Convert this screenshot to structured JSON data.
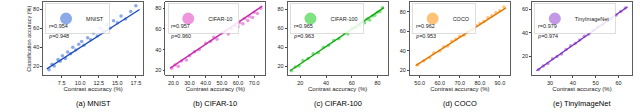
{
  "chart_data": [
    {
      "type": "scatter",
      "caption": "(a) MNIST",
      "xlabel": "Contrast accuracy (%)",
      "ylabel": "Classification accuracy (%)",
      "xlim": [
        5,
        18.5
      ],
      "ylim": [
        10,
        88
      ],
      "xticks": [
        {
          "value": 7.5,
          "label": "7.5"
        },
        {
          "value": 10,
          "label": "10.0"
        },
        {
          "value": 12.5,
          "label": "12.5"
        },
        {
          "value": 15,
          "label": "15.0"
        },
        {
          "value": 17.5,
          "label": "17.5"
        }
      ],
      "yticks": [
        20,
        40,
        60,
        80
      ],
      "grid": false,
      "legend": "upper left",
      "annotations": [
        "r=0.954",
        "ρ=0.948"
      ],
      "series": [
        {
          "name": "MNIST",
          "type": "scatter",
          "color": "#3f6fd8",
          "marker": "circle",
          "x": [
            5.8,
            6.2,
            6.5,
            7.0,
            7.3,
            7.6,
            8.0,
            8.3,
            8.7,
            9.0,
            9.4,
            9.8,
            10.2,
            10.5,
            11.0,
            11.4,
            11.8,
            12.3,
            12.7,
            13.1,
            13.6,
            14.0,
            14.5,
            15.0,
            15.5,
            16.1,
            16.8,
            17.5
          ],
          "values": [
            16,
            22,
            20,
            27,
            25,
            31,
            28,
            35,
            33,
            40,
            37,
            43,
            46,
            42,
            50,
            48,
            55,
            52,
            60,
            57,
            64,
            60,
            68,
            66,
            73,
            70,
            78,
            84
          ]
        },
        {
          "type": "line",
          "color": "#1f4fbf",
          "line_style": "solid",
          "x": [
            5.5,
            18
          ],
          "values": [
            17,
            80
          ]
        }
      ]
    },
    {
      "type": "scatter",
      "caption": "(b) CIFAR-10",
      "xlabel": "Contrast accuracy (%)",
      "xlim": [
        15,
        77
      ],
      "ylim": [
        15,
        86
      ],
      "xticks": [
        {
          "value": 20,
          "label": "20.0"
        },
        {
          "value": 30,
          "label": "30.0"
        },
        {
          "value": 40,
          "label": "40.0"
        },
        {
          "value": 50,
          "label": "50.0"
        },
        {
          "value": 60,
          "label": "60.0"
        },
        {
          "value": 70,
          "label": "70.0"
        }
      ],
      "yticks": [
        20,
        40,
        60,
        80
      ],
      "grid": false,
      "legend": "upper left",
      "annotations": [
        "r=0.957",
        "ρ=0.960"
      ],
      "series": [
        {
          "name": "CIFAR-10",
          "type": "scatter",
          "color": "#e24fc8",
          "marker": "circle",
          "x": [
            19,
            21,
            23,
            25,
            28,
            30,
            33,
            36,
            40,
            43,
            45,
            47,
            50,
            52,
            54,
            56,
            58,
            60,
            61,
            63,
            64,
            66,
            67,
            69,
            70,
            72,
            74
          ],
          "values": [
            22,
            25,
            24,
            29,
            30,
            34,
            38,
            40,
            46,
            48,
            52,
            50,
            56,
            58,
            55,
            60,
            63,
            62,
            66,
            65,
            70,
            68,
            72,
            71,
            76,
            75,
            80
          ]
        },
        {
          "type": "line",
          "color": "#c52aab",
          "line_style": "solid",
          "x": [
            18,
            75
          ],
          "values": [
            22,
            82
          ]
        }
      ]
    },
    {
      "type": "scatter",
      "caption": "(c) CIFAR-100",
      "xlabel": "Contrast accuracy (%)",
      "xlim": [
        10,
        88
      ],
      "ylim": [
        10,
        88
      ],
      "xticks": [
        20,
        40,
        60,
        80
      ],
      "yticks": [
        20,
        40,
        60,
        80
      ],
      "grid": false,
      "legend": "upper left",
      "annotations": [
        "r=0.965",
        "ρ=0.963"
      ],
      "series": [
        {
          "name": "CIFAR-100",
          "type": "scatter",
          "color": "#2ccf2c",
          "marker": "circle",
          "x": [
            13,
            16,
            19,
            22,
            26,
            30,
            34,
            38,
            42,
            46,
            50,
            54,
            57,
            60,
            63,
            66,
            68,
            70,
            72,
            74,
            76,
            78,
            80,
            82,
            84
          ],
          "values": [
            15,
            19,
            20,
            26,
            28,
            33,
            34,
            40,
            42,
            47,
            49,
            55,
            54,
            60,
            61,
            63,
            67,
            66,
            70,
            69,
            73,
            74,
            77,
            78,
            82
          ]
        },
        {
          "type": "line",
          "color": "#12a812",
          "line_style": "solid",
          "x": [
            12,
            85
          ],
          "values": [
            15,
            82
          ]
        }
      ]
    },
    {
      "type": "scatter",
      "caption": "(d) COCO",
      "xlabel": "Contrast accuracy (%)",
      "xlim": [
        45,
        95
      ],
      "ylim": [
        15,
        90
      ],
      "xticks": [
        {
          "value": 50,
          "label": "50.0"
        },
        {
          "value": 60,
          "label": "60.0"
        },
        {
          "value": 70,
          "label": "70.0"
        },
        {
          "value": 80,
          "label": "80.0"
        },
        {
          "value": 90,
          "label": "90.0"
        }
      ],
      "yticks": [
        20,
        40,
        60,
        80
      ],
      "grid": false,
      "legend": "upper left",
      "annotations": [
        "r=0.962",
        "ρ=0.953"
      ],
      "series": [
        {
          "name": "COCO",
          "type": "scatter",
          "color": "#ff9a1a",
          "marker": "circle",
          "x": [
            49,
            52,
            55,
            57,
            60,
            62,
            64,
            66,
            68,
            70,
            72,
            74,
            76,
            78,
            80,
            82,
            84,
            86,
            88,
            90,
            92
          ],
          "values": [
            26,
            30,
            33,
            38,
            40,
            44,
            45,
            50,
            52,
            55,
            56,
            60,
            62,
            66,
            68,
            70,
            74,
            76,
            79,
            81,
            85
          ]
        },
        {
          "type": "line",
          "color": "#e07800",
          "line_style": "solid",
          "x": [
            48,
            93
          ],
          "values": [
            25,
            84
          ]
        }
      ]
    },
    {
      "type": "scatter",
      "caption": "(e) TinyImageNet",
      "xlabel": "Contrast accuracy (%)",
      "xlim": [
        22,
        66
      ],
      "ylim": [
        4,
        66
      ],
      "xticks": [
        30,
        40,
        50,
        60
      ],
      "yticks": [
        20,
        40,
        60
      ],
      "grid": false,
      "legend": "upper left",
      "annotations": [
        "r=0.979",
        "ρ=0.974"
      ],
      "series": [
        {
          "name": "TinyImageNet",
          "type": "scatter",
          "color": "#9b55d6",
          "marker": "circle",
          "x": [
            25,
            27,
            29,
            31,
            33,
            35,
            37,
            39,
            41,
            43,
            45,
            47,
            49,
            51,
            53,
            55,
            57,
            59,
            61,
            63
          ],
          "values": [
            9,
            12,
            14,
            18,
            20,
            22,
            26,
            29,
            31,
            34,
            37,
            39,
            42,
            45,
            47,
            50,
            52,
            55,
            58,
            61
          ]
        },
        {
          "type": "line",
          "color": "#7a2fbf",
          "line_style": "solid",
          "x": [
            24,
            64
          ],
          "values": [
            8,
            62
          ]
        }
      ]
    }
  ]
}
